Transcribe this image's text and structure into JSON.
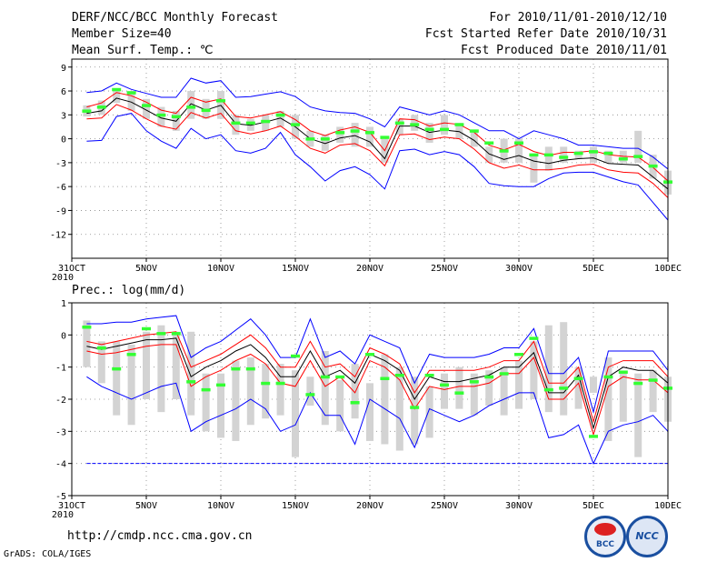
{
  "header": {
    "line1_left": "DERF/NCC/BCC Monthly Forecast",
    "line2_left": "Member Size=40",
    "line3_left": "Mean Surf. Temp.: ℃",
    "line1_right": "For 2010/11/01-2010/12/10",
    "line2_right": "Fcst Started Refer Date 2010/10/31",
    "line3_right": "Fcst Produced Date 2010/11/01"
  },
  "footer": {
    "url": "http://cmdp.ncc.cma.gov.cn",
    "credit": "GrADS: COLA/IGES",
    "logo_bcc": "BCC",
    "logo_ncc": "NCC"
  },
  "colors": {
    "box": "#d3d3d3",
    "median": "#000000",
    "inner": "#ff0000",
    "outer": "#0000ff",
    "obs": "#33ff33",
    "grid": "#888888"
  },
  "chart_data": [
    {
      "type": "line",
      "title": "Mean Surf. Temp.: ℃",
      "x_tick_labels": [
        "31OCT\n2010",
        "5NOV",
        "10NOV",
        "15NOV",
        "20NOV",
        "25NOV",
        "30NOV",
        "5DEC",
        "10DEC"
      ],
      "x_tick_days": [
        0,
        5,
        10,
        15,
        20,
        25,
        30,
        35,
        40
      ],
      "ylim": [
        -15,
        10
      ],
      "y_ticks": [
        9,
        6,
        3,
        0,
        -3,
        -6,
        -9,
        -12
      ],
      "days": [
        1,
        2,
        3,
        4,
        5,
        6,
        7,
        8,
        9,
        10,
        11,
        12,
        13,
        14,
        15,
        16,
        17,
        18,
        19,
        20,
        21,
        22,
        23,
        24,
        25,
        26,
        27,
        28,
        29,
        30,
        31,
        32,
        33,
        34,
        35,
        36,
        37,
        38,
        39,
        40
      ],
      "series": [
        {
          "name": "max",
          "values": [
            5.8,
            6,
            7,
            6.2,
            5.7,
            5.2,
            5.2,
            7.6,
            7,
            7.3,
            5.2,
            5.3,
            5.6,
            5.9,
            5.3,
            4,
            3.5,
            3.3,
            3.2,
            2.5,
            1.5,
            4,
            3.5,
            3,
            3.5,
            3,
            2,
            1,
            1,
            0,
            1,
            0.5,
            0,
            -0.8,
            -0.8,
            -1,
            -1.2,
            -1.2,
            -2.3,
            -3.8
          ]
        },
        {
          "name": "upper",
          "values": [
            4,
            4.5,
            5.8,
            5.4,
            4.6,
            3.6,
            3.2,
            5.2,
            4.6,
            5,
            2.8,
            2.6,
            3,
            3.4,
            2.4,
            1,
            0.4,
            1.1,
            1.5,
            0.8,
            -1.5,
            2.5,
            2.4,
            1.6,
            2,
            1.8,
            0.8,
            -0.8,
            -1.4,
            -0.7,
            -1.6,
            -2.1,
            -1.7,
            -1.7,
            -1.5,
            -2,
            -2.2,
            -2.3,
            -3.6,
            -5.3
          ]
        },
        {
          "name": "median",
          "values": [
            3.2,
            3.5,
            5.1,
            4.6,
            3.6,
            2.6,
            2.2,
            4.4,
            3.6,
            4.2,
            1.9,
            1.7,
            2.1,
            2.6,
            1.5,
            0,
            -0.6,
            0.1,
            0.4,
            -0.4,
            -2.5,
            1.6,
            1.6,
            0.8,
            1.1,
            0.9,
            -0.2,
            -1.9,
            -2.6,
            -2.1,
            -2.8,
            -3.1,
            -2.7,
            -2.5,
            -2.4,
            -3.1,
            -3.2,
            -3.3,
            -4.8,
            -6.3
          ]
        },
        {
          "name": "lower",
          "values": [
            2.5,
            2.6,
            4.3,
            3.6,
            2.5,
            1.6,
            1.2,
            3.3,
            2.6,
            3.2,
            1,
            0.6,
            1,
            1.6,
            0.3,
            -1.2,
            -1.8,
            -0.8,
            -0.6,
            -1.5,
            -3.4,
            0.5,
            0.6,
            -0.1,
            0.2,
            0,
            -1.3,
            -3,
            -3.7,
            -3.3,
            -3.9,
            -3.9,
            -3.7,
            -3.3,
            -3.2,
            -3.9,
            -4.2,
            -4.3,
            -5.6,
            -7.4
          ]
        },
        {
          "name": "min",
          "values": [
            -0.3,
            -0.2,
            2.8,
            3.2,
            1,
            -0.3,
            -1.2,
            1.3,
            0,
            0.5,
            -1.5,
            -1.8,
            -1.2,
            0.8,
            -2,
            -3.5,
            -5.3,
            -4,
            -3.5,
            -4.5,
            -6.3,
            -1.5,
            -1.3,
            -2,
            -1.6,
            -2,
            -3.5,
            -5.6,
            -5.9,
            -6,
            -6,
            -5,
            -4.3,
            -4.2,
            -4.2,
            -4.8,
            -5.4,
            -5.8,
            -8,
            -10.2
          ]
        }
      ],
      "box_ranges": [
        [
          2.8,
          4.2
        ],
        [
          3,
          4.8
        ],
        [
          4.5,
          6
        ],
        [
          3.5,
          6
        ],
        [
          2.5,
          5
        ],
        [
          1.5,
          4
        ],
        [
          1,
          3.5
        ],
        [
          2.5,
          6
        ],
        [
          2.5,
          5
        ],
        [
          2.5,
          6
        ],
        [
          0.5,
          3
        ],
        [
          1,
          2.5
        ],
        [
          1,
          3
        ],
        [
          1.5,
          3.5
        ],
        [
          0,
          3
        ],
        [
          -1,
          1
        ],
        [
          -1.5,
          0.5
        ],
        [
          -0.5,
          1.5
        ],
        [
          -1,
          2
        ],
        [
          -1,
          1.5
        ],
        [
          -3,
          0
        ],
        [
          0.5,
          2.5
        ],
        [
          1,
          3
        ],
        [
          -0.5,
          2
        ],
        [
          0.5,
          3
        ],
        [
          0,
          2
        ],
        [
          -1,
          1
        ],
        [
          -3,
          -1
        ],
        [
          -3,
          0
        ],
        [
          -3,
          0
        ],
        [
          -5.5,
          -2
        ],
        [
          -4,
          -1
        ],
        [
          -3,
          -1
        ],
        [
          -2.5,
          -1.5
        ],
        [
          -3,
          -1
        ],
        [
          -3,
          -1.5
        ],
        [
          -3,
          -1.5
        ],
        [
          -3,
          1
        ],
        [
          -5,
          -2
        ],
        [
          -7,
          -4
        ]
      ],
      "observed": [
        3.5,
        4,
        6.2,
        5.8,
        4.2,
        3,
        2.8,
        4,
        3.6,
        4.8,
        2,
        2,
        2.2,
        3,
        1.8,
        0,
        0,
        0.8,
        1,
        0.8,
        0.2,
        2,
        1.8,
        1.2,
        1.2,
        1.8,
        1,
        -0.5,
        -1.5,
        -0.5,
        -2,
        -2,
        -2.3,
        -1.8,
        -1.6,
        -1.8,
        -2.5,
        -2.2,
        -3.4,
        -5.4
      ]
    },
    {
      "type": "line",
      "title": "Prec.: log(mm/d)",
      "x_tick_labels": [
        "31OCT\n2010",
        "5NOV",
        "10NOV",
        "15NOV",
        "20NOV",
        "25NOV",
        "30NOV",
        "5DEC",
        "10DEC"
      ],
      "x_tick_days": [
        0,
        5,
        10,
        15,
        20,
        25,
        30,
        35,
        40
      ],
      "ylim": [
        -5,
        1
      ],
      "y_ticks": [
        1,
        0,
        -1,
        -2,
        -3,
        -4,
        -5
      ],
      "days": [
        1,
        2,
        3,
        4,
        5,
        6,
        7,
        8,
        9,
        10,
        11,
        12,
        13,
        14,
        15,
        16,
        17,
        18,
        19,
        20,
        21,
        22,
        23,
        24,
        25,
        26,
        27,
        28,
        29,
        30,
        31,
        32,
        33,
        34,
        35,
        36,
        37,
        38,
        39,
        40
      ],
      "floor_value": -4,
      "series": [
        {
          "name": "max",
          "values": [
            0.35,
            0.35,
            0.4,
            0.4,
            0.5,
            0.55,
            0.6,
            -0.7,
            -0.4,
            -0.2,
            0.15,
            0.5,
            0,
            -0.7,
            -0.7,
            0.5,
            -0.7,
            -0.5,
            -0.9,
            0,
            -0.2,
            -0.4,
            -1.5,
            -0.6,
            -0.7,
            -0.7,
            -0.7,
            -0.6,
            -0.4,
            -0.4,
            0.2,
            -1.2,
            -1.2,
            -0.7,
            -2.4,
            -0.5,
            -0.5,
            -0.5,
            -0.5,
            -1.1
          ]
        },
        {
          "name": "upper",
          "values": [
            -0.2,
            -0.3,
            -0.2,
            -0.1,
            0,
            0.05,
            0.1,
            -1,
            -0.8,
            -0.6,
            -0.3,
            0,
            -0.4,
            -1,
            -1,
            -0.2,
            -1,
            -0.9,
            -1.3,
            -0.4,
            -0.6,
            -0.9,
            -1.8,
            -1.1,
            -1.1,
            -1.1,
            -1.1,
            -1,
            -0.8,
            -0.8,
            -0.2,
            -1.5,
            -1.5,
            -1,
            -2.7,
            -1,
            -0.8,
            -0.8,
            -0.8,
            -1.3
          ]
        },
        {
          "name": "median",
          "values": [
            -0.35,
            -0.45,
            -0.35,
            -0.25,
            -0.15,
            -0.15,
            -0.1,
            -1.3,
            -1,
            -0.8,
            -0.5,
            -0.3,
            -0.7,
            -1.3,
            -1.3,
            -0.5,
            -1.3,
            -1.1,
            -1.5,
            -0.6,
            -0.8,
            -1.1,
            -2,
            -1.3,
            -1.45,
            -1.45,
            -1.35,
            -1.25,
            -1,
            -1,
            -0.55,
            -1.8,
            -1.8,
            -1.25,
            -2.9,
            -1.3,
            -1,
            -1.1,
            -1.1,
            -1.5
          ]
        },
        {
          "name": "lower",
          "values": [
            -0.5,
            -0.6,
            -0.55,
            -0.45,
            -0.35,
            -0.3,
            -0.3,
            -1.6,
            -1.3,
            -1.1,
            -0.8,
            -0.6,
            -0.9,
            -1.5,
            -1.6,
            -0.8,
            -1.6,
            -1.3,
            -1.8,
            -0.8,
            -1,
            -1.4,
            -2.3,
            -1.6,
            -1.7,
            -1.6,
            -1.6,
            -1.5,
            -1.2,
            -1.2,
            -0.7,
            -2,
            -2,
            -1.5,
            -3.1,
            -1.6,
            -1.3,
            -1.4,
            -1.4,
            -1.8
          ]
        },
        {
          "name": "min",
          "values": [
            -1.3,
            -1.6,
            -1.8,
            -2,
            -1.8,
            -1.6,
            -1.5,
            -3,
            -2.7,
            -2.5,
            -2.3,
            -2,
            -2.3,
            -3,
            -2.8,
            -1.8,
            -2.5,
            -2.5,
            -3.4,
            -2,
            -2.3,
            -2.6,
            -3.5,
            -2.3,
            -2.5,
            -2.7,
            -2.5,
            -2.2,
            -2,
            -1.8,
            -1.8,
            -3.2,
            -3.1,
            -2.8,
            -4,
            -3,
            -2.8,
            -2.7,
            -2.5,
            -3
          ]
        }
      ],
      "box_ranges": [
        [
          -1,
          0.45
        ],
        [
          -1.5,
          -0.2
        ],
        [
          -2.5,
          -0.2
        ],
        [
          -2.8,
          -0.3
        ],
        [
          -2,
          0.1
        ],
        [
          -2.4,
          0.3
        ],
        [
          -2,
          0.1
        ],
        [
          -2.5,
          0.1
        ],
        [
          -3,
          -1.2
        ],
        [
          -3.2,
          -1.2
        ],
        [
          -3.3,
          -0.8
        ],
        [
          -2.8,
          -0.7
        ],
        [
          -2.6,
          -0.9
        ],
        [
          -2.5,
          -0.9
        ],
        [
          -3.8,
          -1.1
        ],
        [
          -2.2,
          -1.3
        ],
        [
          -2.8,
          -0.5
        ],
        [
          -3,
          -1.4
        ],
        [
          -2.6,
          -0.9
        ],
        [
          -3.3,
          -1.5
        ],
        [
          -3.4,
          -0.6
        ],
        [
          -3.6,
          -1
        ],
        [
          -3.4,
          -1.3
        ],
        [
          -3.2,
          -1.6
        ],
        [
          -2.3,
          -1.2
        ],
        [
          -2.3,
          -1
        ],
        [
          -2.5,
          -1.2
        ],
        [
          -2.2,
          -1.1
        ],
        [
          -2.5,
          -1
        ],
        [
          -2.3,
          -0.8
        ],
        [
          -2,
          -0.2
        ],
        [
          -2.4,
          0.3
        ],
        [
          -2.5,
          0.4
        ],
        [
          -2.3,
          -1
        ],
        [
          -1.8,
          -1.3
        ],
        [
          -3.3,
          -0.7
        ],
        [
          -2.7,
          -1.2
        ],
        [
          -3.8,
          -1.2
        ],
        [
          -2.4,
          -1.1
        ],
        [
          -2.7,
          -1.3
        ]
      ],
      "observed": [
        0.25,
        -0.4,
        -1.05,
        -0.6,
        0.2,
        0.05,
        0.05,
        -1.45,
        -1.7,
        -1.55,
        -1.05,
        -1.05,
        -1.5,
        -1.5,
        -0.65,
        -1.85,
        -1.3,
        -1.3,
        -2.1,
        -0.6,
        -1.35,
        -1.25,
        -2.25,
        -1.25,
        -1.55,
        -1.8,
        -1.45,
        -1.3,
        -1.2,
        -0.6,
        -0.1,
        -1.7,
        -1.65,
        -1.35,
        -3.15,
        -1.3,
        -1.15,
        -1.5,
        -1.4,
        -1.65
      ]
    }
  ]
}
